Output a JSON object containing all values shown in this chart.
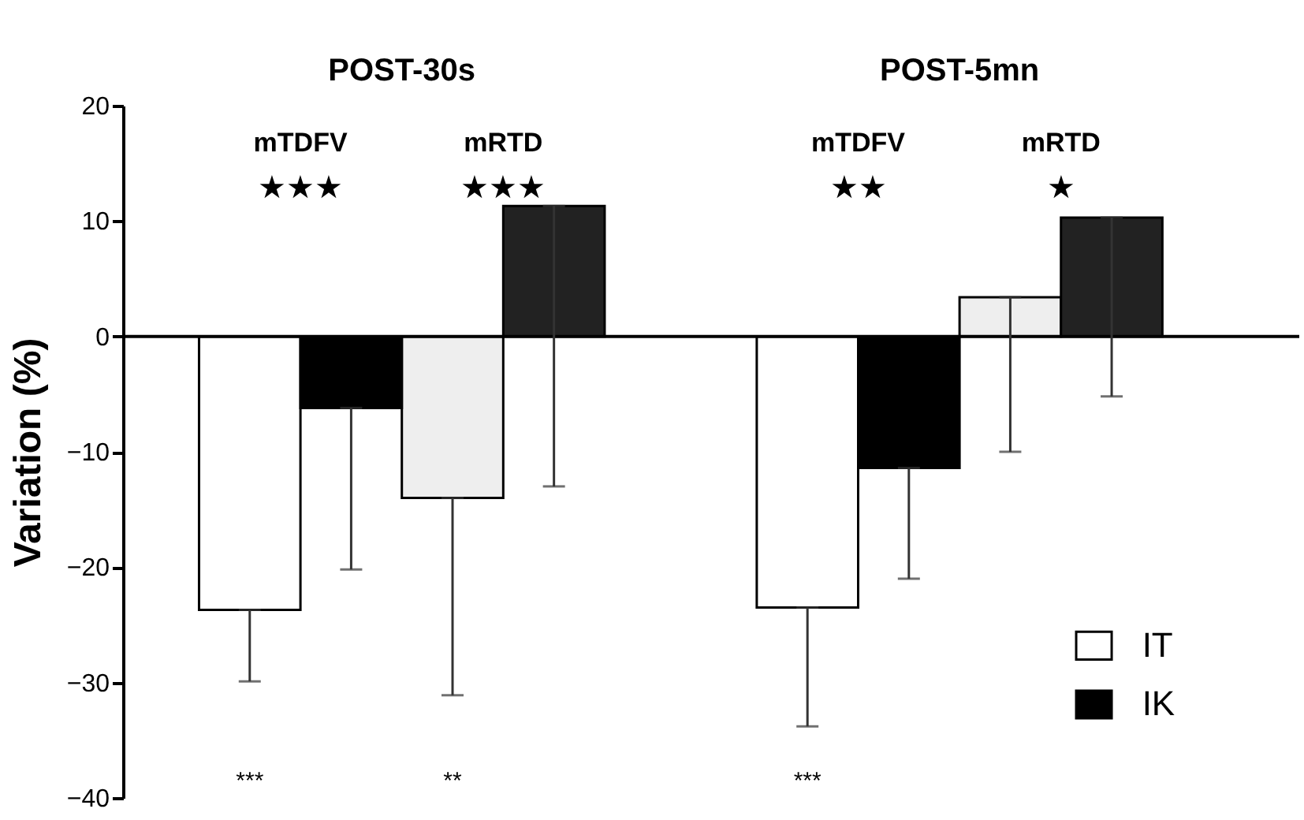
{
  "chart_data": {
    "type": "bar",
    "ylabel": "Variation (%)",
    "categories": [
      "mTDFV",
      "mRTD",
      "mTDFV",
      "mRTD"
    ],
    "series": [
      {
        "name": "IT",
        "color": "#ffffff",
        "colors": [
          "#ffffff",
          "#eeeeee",
          "#ffffff",
          "#eeeeee"
        ],
        "values": [
          -23.7,
          -14.0,
          -23.5,
          3.4
        ],
        "errors": [
          [
            -29.9,
            -23.7
          ],
          [
            -31.1,
            -14.0
          ],
          [
            -33.8,
            -23.5
          ],
          [
            -10.0,
            3.4
          ]
        ]
      },
      {
        "name": "IK",
        "color": "#000000",
        "colors": [
          "#000000",
          "#222222",
          "#000000",
          "#222222"
        ],
        "values": [
          -6.2,
          11.3,
          -11.4,
          10.3
        ],
        "errors": [
          [
            -20.2,
            -6.2
          ],
          [
            -13.0,
            11.3
          ],
          [
            -21.0,
            -11.4
          ],
          [
            -5.2,
            10.3
          ]
        ]
      }
    ],
    "ylim": [
      -40,
      20
    ],
    "yticks": [
      -40,
      -30,
      -20,
      -10,
      0,
      10,
      20
    ],
    "grid": false,
    "legend": "bottom right",
    "ref_lines": [
      {
        "axis": "y",
        "value": 0
      }
    ],
    "annotations": [
      "POST-30s",
      "POST-5mn",
      "★★★",
      "★★★",
      "★★",
      "★",
      "***",
      "**",
      "***"
    ]
  }
}
